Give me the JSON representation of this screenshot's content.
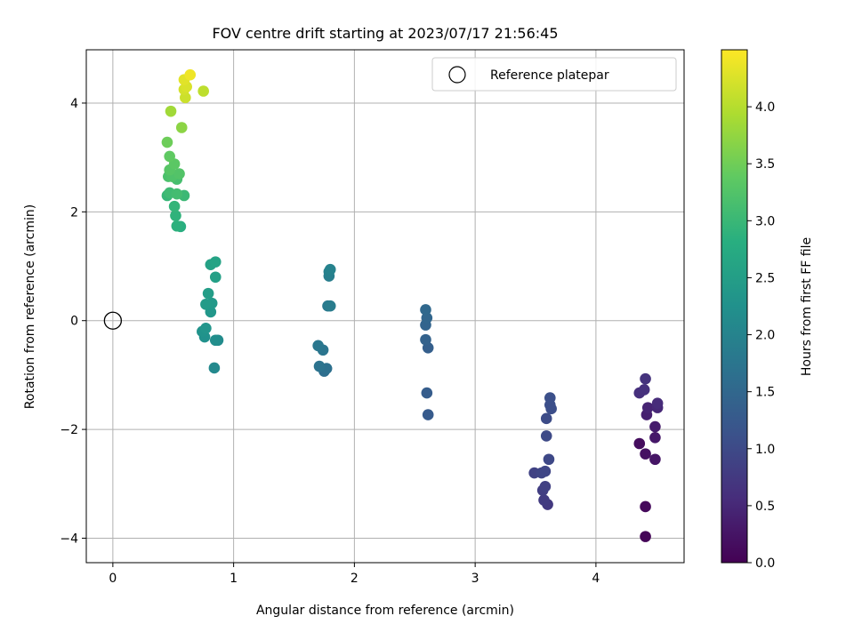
{
  "chart_data": {
    "type": "scatter",
    "title": "FOV centre drift starting at 2023/07/17 21:56:45",
    "xlabel": "Angular distance from reference (arcmin)",
    "ylabel": "Rotation from reference (arcmin)",
    "xlim": [
      -0.22,
      4.73
    ],
    "ylim": [
      -4.45,
      4.98
    ],
    "xticks": [
      "0",
      "1",
      "2",
      "3",
      "4"
    ],
    "xtick_values": [
      0,
      1,
      2,
      3,
      4
    ],
    "yticks": [
      "−4",
      "−2",
      "0",
      "2",
      "4"
    ],
    "ytick_values": [
      -4,
      -2,
      0,
      2,
      4
    ],
    "grid": true,
    "colormap": "viridis",
    "legend": {
      "placement": "top-right",
      "entries": [
        {
          "label": "Reference platepar",
          "marker": "open-circle"
        }
      ]
    },
    "reference_point": {
      "x": 0,
      "y": 0,
      "label": "Reference platepar"
    },
    "colorbar": {
      "label": "Hours from first FF file",
      "range": [
        0.0,
        4.5
      ],
      "ticks": [
        "0.0",
        "0.5",
        "1.0",
        "1.5",
        "2.0",
        "2.5",
        "3.0",
        "3.5",
        "4.0"
      ],
      "tick_values": [
        0.0,
        0.5,
        1.0,
        1.5,
        2.0,
        2.5,
        3.0,
        3.5,
        4.0
      ]
    },
    "points": [
      [
        4.41,
        -3.97,
        0.05
      ],
      [
        4.41,
        -3.42,
        0.1
      ],
      [
        4.36,
        -2.26,
        0.15
      ],
      [
        4.41,
        -2.45,
        0.2
      ],
      [
        4.49,
        -2.55,
        0.25
      ],
      [
        4.49,
        -2.15,
        0.3
      ],
      [
        4.49,
        -1.95,
        0.35
      ],
      [
        4.42,
        -1.73,
        0.4
      ],
      [
        4.43,
        -1.6,
        0.45
      ],
      [
        4.51,
        -1.6,
        0.5
      ],
      [
        4.51,
        -1.52,
        0.55
      ],
      [
        4.36,
        -1.33,
        0.6
      ],
      [
        4.4,
        -1.27,
        0.62
      ],
      [
        4.41,
        -1.07,
        0.65
      ],
      [
        3.6,
        -3.38,
        0.75
      ],
      [
        3.57,
        -3.3,
        0.78
      ],
      [
        3.56,
        -3.12,
        0.82
      ],
      [
        3.58,
        -3.05,
        0.85
      ],
      [
        3.49,
        -2.8,
        0.88
      ],
      [
        3.55,
        -2.8,
        0.92
      ],
      [
        3.58,
        -2.77,
        0.95
      ],
      [
        3.61,
        -2.55,
        0.98
      ],
      [
        3.59,
        -2.12,
        1.0
      ],
      [
        3.59,
        -1.8,
        1.03
      ],
      [
        3.63,
        -1.62,
        1.06
      ],
      [
        3.62,
        -1.55,
        1.08
      ],
      [
        3.62,
        -1.42,
        1.1
      ],
      [
        2.61,
        -1.73,
        1.28
      ],
      [
        2.6,
        -1.33,
        1.32
      ],
      [
        2.61,
        -0.5,
        1.36
      ],
      [
        2.59,
        -0.35,
        1.4
      ],
      [
        2.59,
        -0.08,
        1.44
      ],
      [
        2.6,
        0.05,
        1.48
      ],
      [
        2.59,
        0.2,
        1.52
      ],
      [
        1.75,
        -0.93,
        1.62
      ],
      [
        1.77,
        -0.88,
        1.66
      ],
      [
        1.71,
        -0.84,
        1.7
      ],
      [
        1.74,
        -0.54,
        1.74
      ],
      [
        1.7,
        -0.46,
        1.78
      ],
      [
        1.78,
        0.27,
        1.82
      ],
      [
        1.8,
        0.27,
        1.86
      ],
      [
        1.79,
        0.82,
        1.9
      ],
      [
        1.79,
        0.9,
        1.94
      ],
      [
        1.8,
        0.94,
        1.98
      ],
      [
        0.84,
        -0.87,
        2.1
      ],
      [
        0.87,
        -0.36,
        2.15
      ],
      [
        0.85,
        -0.36,
        2.2
      ],
      [
        0.76,
        -0.3,
        2.25
      ],
      [
        0.74,
        -0.2,
        2.28
      ],
      [
        0.77,
        -0.14,
        2.32
      ],
      [
        0.81,
        0.16,
        2.36
      ],
      [
        0.82,
        0.32,
        2.4
      ],
      [
        0.77,
        0.3,
        2.44
      ],
      [
        0.79,
        0.5,
        2.48
      ],
      [
        0.85,
        0.8,
        2.52
      ],
      [
        0.81,
        1.03,
        2.56
      ],
      [
        0.85,
        1.08,
        2.6
      ],
      [
        0.56,
        1.73,
        2.82
      ],
      [
        0.53,
        1.74,
        2.86
      ],
      [
        0.52,
        1.93,
        2.9
      ],
      [
        0.51,
        2.1,
        2.94
      ],
      [
        0.45,
        2.3,
        2.98
      ],
      [
        0.59,
        2.3,
        3.02
      ],
      [
        0.47,
        2.35,
        3.06
      ],
      [
        0.53,
        2.33,
        3.1
      ],
      [
        0.53,
        2.6,
        3.14
      ],
      [
        0.46,
        2.65,
        3.18
      ],
      [
        0.49,
        2.65,
        3.22
      ],
      [
        0.55,
        2.7,
        3.26
      ],
      [
        0.47,
        2.77,
        3.3
      ],
      [
        0.51,
        2.88,
        3.34
      ],
      [
        0.47,
        3.02,
        3.38
      ],
      [
        0.45,
        3.28,
        3.48
      ],
      [
        0.57,
        3.55,
        3.7
      ],
      [
        0.48,
        3.85,
        3.85
      ],
      [
        0.75,
        4.22,
        4.05
      ],
      [
        0.6,
        4.1,
        4.15
      ],
      [
        0.59,
        4.25,
        4.2
      ],
      [
        0.61,
        4.3,
        4.25
      ],
      [
        0.59,
        4.43,
        4.3
      ],
      [
        0.64,
        4.52,
        4.4
      ]
    ]
  }
}
